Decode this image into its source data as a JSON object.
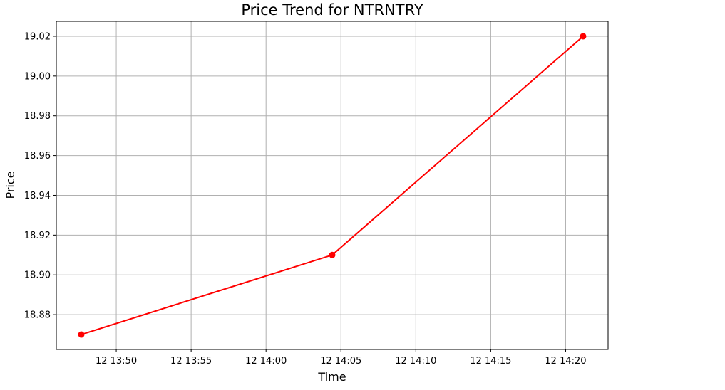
{
  "chart_data": {
    "type": "line",
    "title": "Price Trend for NTRNTRY",
    "xlabel": "Time",
    "ylabel": "Price",
    "x_type": "datetime",
    "x": [
      "12 13:47:40",
      "12 14:04:25",
      "12 14:21:10"
    ],
    "series": [
      {
        "values": [
          18.87,
          18.91,
          19.02
        ],
        "color": "#ff0000",
        "marker": "circle"
      }
    ],
    "x_ticks": [
      "12 13:50",
      "12 13:55",
      "12 14:00",
      "12 14:05",
      "12 14:10",
      "12 14:15",
      "12 14:20"
    ],
    "y_ticks": [
      18.88,
      18.9,
      18.92,
      18.94,
      18.96,
      18.98,
      19.0,
      19.02
    ],
    "xlim": [
      "12 13:46:00",
      "12 14:22:50"
    ],
    "ylim": [
      18.8625,
      19.0275
    ],
    "grid": true,
    "legend": "none"
  }
}
